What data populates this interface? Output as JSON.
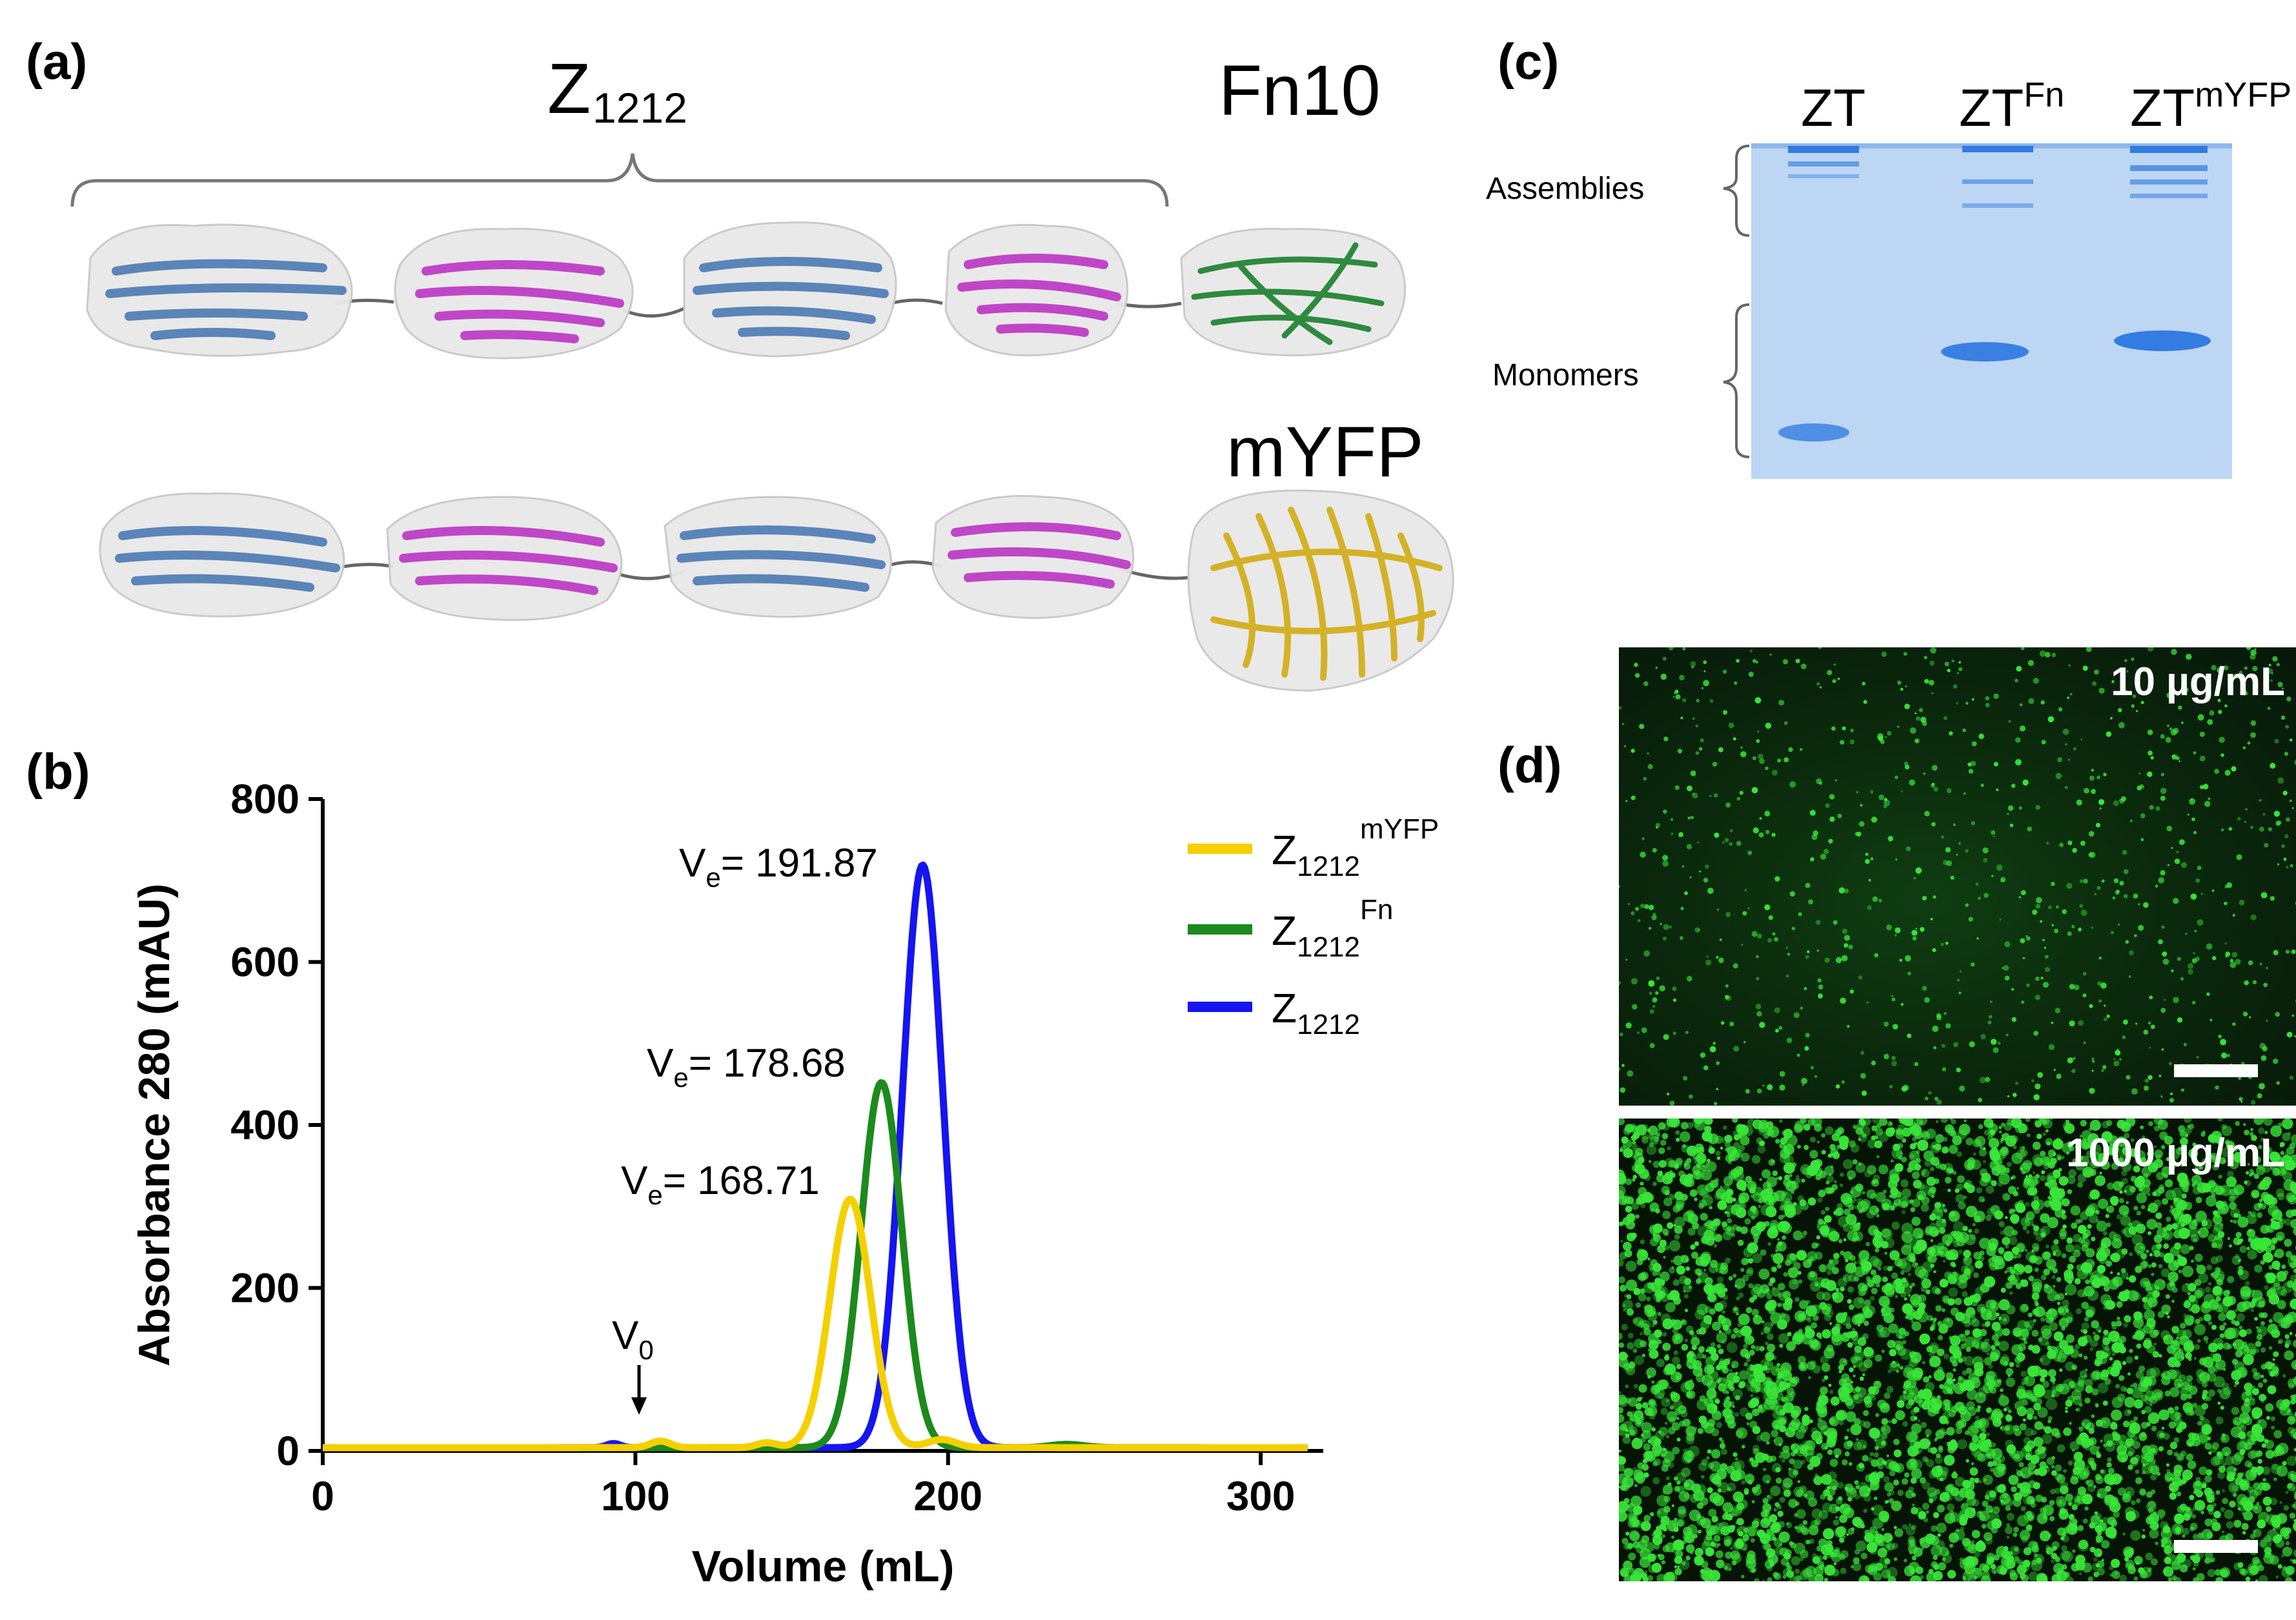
{
  "panel_a": {
    "label": "(a)",
    "bracket_label_main": "Z",
    "bracket_label_sub": "1212",
    "fn_label": "Fn10",
    "myfp_label": "mYFP",
    "colors": {
      "blue": "#5b84b8",
      "magenta": "#c046c8",
      "green": "#2e8a3e",
      "gold": "#d4b227",
      "surface": "#e6e6e6"
    }
  },
  "panel_b": {
    "label": "(b)"
  },
  "panel_c": {
    "label": "(c)",
    "lanes": [
      {
        "main": "ZT",
        "sup": ""
      },
      {
        "main": "ZT",
        "sup": "Fn"
      },
      {
        "main": "ZT",
        "sup": "mYFP"
      }
    ],
    "assemblies_label": "Assemblies",
    "monomers_label": "Monomers",
    "gel_color": "#bcd6f4",
    "band_color": "#2b77e0"
  },
  "panel_d": {
    "label": "(d)",
    "top_label": "10 µg/mL",
    "bottom_label": "1000 µg/mL",
    "dot_color": "#39e639"
  },
  "chart_data": {
    "type": "line",
    "xlabel": "Volume (mL)",
    "ylabel": "Absorbance 280 (mAU)",
    "xlim": [
      0,
      320
    ],
    "ylim": [
      0,
      800
    ],
    "xticks": [
      0,
      100,
      200,
      300
    ],
    "yticks": [
      0,
      200,
      400,
      600,
      800
    ],
    "grid": false,
    "legend_position": "top-right",
    "series": [
      {
        "name_main": "Z",
        "name_sub": "1212",
        "name_sup": "mYFP",
        "color": "#f5d000",
        "peak_x": 168.71,
        "peak_y": 305,
        "sigma": 6.5,
        "x_max": 315
      },
      {
        "name_main": "Z",
        "name_sub": "1212",
        "name_sup": "Fn",
        "color": "#1d8a1d",
        "peak_x": 178.68,
        "peak_y": 448,
        "sigma": 6.5,
        "x_max": 315
      },
      {
        "name_main": "Z",
        "name_sub": "1212",
        "name_sup": "",
        "color": "#1515f0",
        "peak_x": 191.87,
        "peak_y": 715,
        "sigma": 6.5,
        "x_max": 315
      }
    ],
    "annotations": [
      {
        "prefix": "V",
        "sub": "e",
        "text": "= 168.71"
      },
      {
        "prefix": "V",
        "sub": "e",
        "text": "= 178.68"
      },
      {
        "prefix": "V",
        "sub": "e",
        "text": "= 191.87"
      },
      {
        "prefix": "V",
        "sub": "0",
        "text": "",
        "x": 100
      }
    ]
  }
}
